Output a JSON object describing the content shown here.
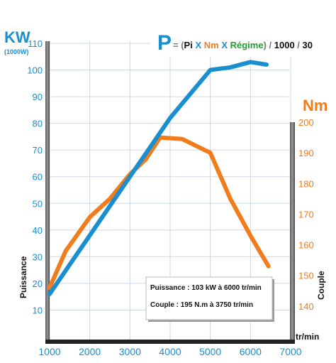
{
  "chart_data": {
    "type": "line",
    "formula": {
      "p": "P",
      "eq": "= (",
      "pi": "Pi",
      "x1": " X ",
      "nm": "Nm",
      "x2": " X ",
      "regime": "Régime",
      "close": ")",
      "slash1": " / ",
      "d1": "1000",
      "slash2": " / ",
      "d2": "30"
    },
    "left_axis": {
      "unit": "KW",
      "subunit": "(1000W)",
      "label": "Puissance",
      "range": [
        0,
        110
      ],
      "ticks": [
        "10",
        "20",
        "30",
        "40",
        "50",
        "60",
        "70",
        "80",
        "90",
        "100",
        "110"
      ]
    },
    "right_axis": {
      "unit": "Nm",
      "label": "Couple",
      "range": [
        130,
        200
      ],
      "ticks": [
        "140",
        "150",
        "160",
        "170",
        "180",
        "190",
        "200"
      ]
    },
    "x_axis": {
      "unit": "tr/min",
      "range": [
        1000,
        7000
      ],
      "ticks": [
        "1000",
        "2000",
        "3000",
        "4000",
        "5000",
        "6000",
        "7000"
      ]
    },
    "series": [
      {
        "name": "Puissance",
        "axis": "left",
        "color": "#1a8fd0",
        "x": [
          1000,
          1500,
          2000,
          2500,
          3000,
          3500,
          4000,
          4500,
          5000,
          5500,
          6000,
          6400
        ],
        "values": [
          16,
          27,
          38,
          49,
          60,
          71,
          82,
          91,
          100,
          101,
          103,
          102
        ]
      },
      {
        "name": "Couple",
        "axis": "right",
        "color": "#f07c1c",
        "x": [
          1000,
          1400,
          2000,
          2500,
          3000,
          3400,
          3750,
          4300,
          5000,
          5500,
          6000,
          6450
        ],
        "values": [
          146,
          158,
          169,
          175,
          183,
          188,
          195,
          194.5,
          190,
          175,
          163,
          153
        ]
      }
    ],
    "annotations": {
      "puissance": "Puissance : 103 kW à 6000 tr/min",
      "couple": "Couple : 195 N.m à 3750 tr/min"
    },
    "grid": true,
    "colors": {
      "power": "#1a8fd0",
      "torque": "#f07c1c",
      "grid": "#cfd8e0"
    }
  }
}
